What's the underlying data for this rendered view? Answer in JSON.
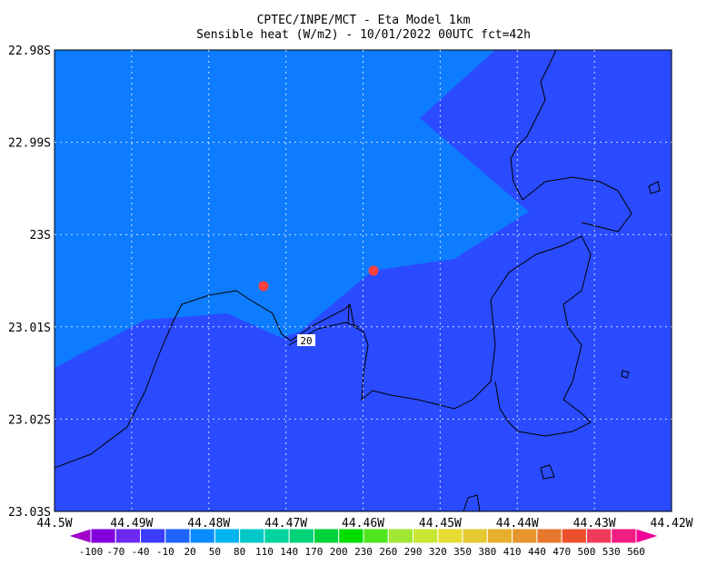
{
  "header": {
    "title": "CPTEC/INPE/MCT -  Eta Model 1km",
    "subtitle": "Sensible heat (W/m2) - 10/01/2022 00UTC fct=42h"
  },
  "map": {
    "y_ticks": [
      "22.98S",
      "22.99S",
      "23S",
      "23.01S",
      "23.02S",
      "23.03S"
    ],
    "x_ticks": [
      "44.5W",
      "44.49W",
      "44.48W",
      "44.47W",
      "44.46W",
      "44.45W",
      "44.44W",
      "44.43W",
      "44.42W"
    ],
    "contour_label": "20"
  },
  "colorbar": {
    "labels": [
      "-100",
      "-70",
      "-40",
      "-10",
      "20",
      "50",
      "80",
      "110",
      "140",
      "170",
      "200",
      "230",
      "260",
      "290",
      "320",
      "350",
      "380",
      "410",
      "440",
      "470",
      "500",
      "530",
      "560"
    ],
    "colors": [
      "#a000c8",
      "#8200dc",
      "#6e28f0",
      "#3c3cff",
      "#2064ff",
      "#0a8cff",
      "#00b4f0",
      "#00c8c8",
      "#00d2a0",
      "#00d278",
      "#00d23c",
      "#00dc00",
      "#50e61e",
      "#a0e632",
      "#c8e632",
      "#e6dc32",
      "#e6c832",
      "#e6af2d",
      "#e6962d",
      "#e6782d",
      "#eb502d",
      "#f03c5a",
      "#f01e82",
      "#f00096"
    ]
  }
}
